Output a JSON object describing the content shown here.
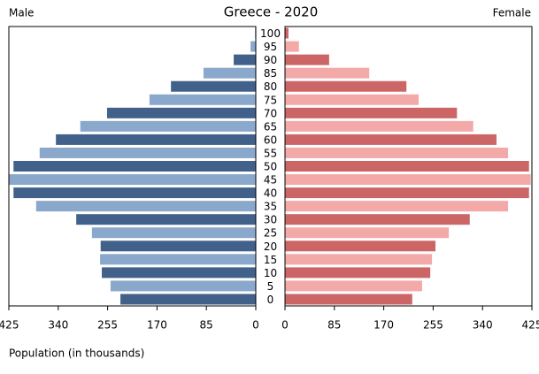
{
  "chart_data": {
    "type": "pyramid",
    "title": "Greece - 2020",
    "xlabel": "Population (in thousands)",
    "categories": [
      "100",
      "95",
      "90",
      "85",
      "80",
      "75",
      "70",
      "65",
      "60",
      "55",
      "50",
      "45",
      "40",
      "35",
      "30",
      "25",
      "20",
      "15",
      "10",
      "5",
      "0"
    ],
    "series": [
      {
        "name": "Male",
        "colors": [
          "#41618a",
          "#8aa8cc"
        ],
        "values": [
          1,
          9,
          38,
          90,
          146,
          183,
          256,
          302,
          344,
          372,
          417,
          425,
          417,
          378,
          309,
          282,
          267,
          268,
          265,
          250,
          233
        ]
      },
      {
        "name": "Female",
        "colors": [
          "#cc6666",
          "#f4a9a9"
        ],
        "values": [
          6,
          24,
          76,
          145,
          209,
          230,
          296,
          324,
          364,
          384,
          420,
          423,
          420,
          384,
          318,
          282,
          259,
          253,
          250,
          236,
          219
        ]
      }
    ],
    "xlim": [
      0,
      425
    ],
    "xticks": [
      0,
      85,
      170,
      255,
      340,
      425
    ]
  }
}
